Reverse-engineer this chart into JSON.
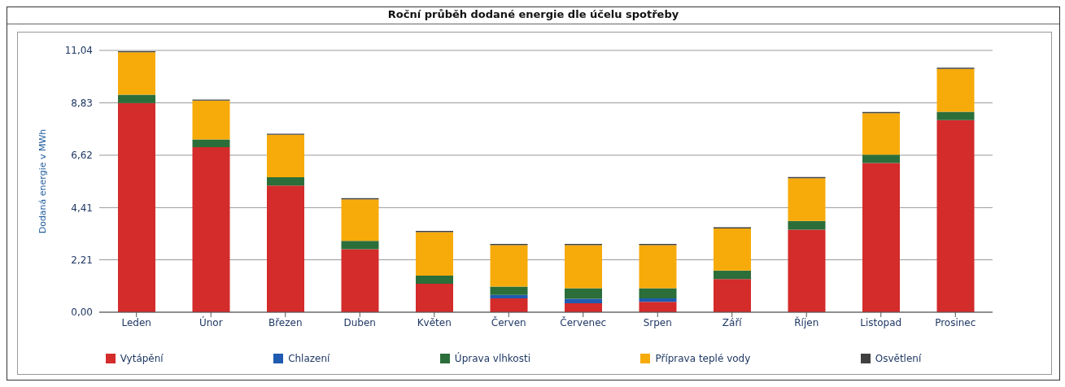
{
  "chart_data": {
    "type": "bar",
    "title": "Roční průběh dodané energie dle účelu spotřeby",
    "ylabel": "Dodaná energie v MWh",
    "stacked": true,
    "grid": "y",
    "legend": "bottom",
    "categories": [
      "Leden",
      "Únor",
      "Březen",
      "Duben",
      "Květen",
      "Červen",
      "Červenec",
      "Srpen",
      "Září",
      "Říjen",
      "Listopad",
      "Prosinec"
    ],
    "ylim": [
      0,
      11.04
    ],
    "yticks": [
      {
        "value": 0,
        "label": "0,00"
      },
      {
        "value": 2.21,
        "label": "2,21"
      },
      {
        "value": 4.41,
        "label": "4,41"
      },
      {
        "value": 6.62,
        "label": "6,62"
      },
      {
        "value": 8.83,
        "label": "8,83"
      },
      {
        "value": 11.04,
        "label": "11,04"
      }
    ],
    "series": [
      {
        "name": "Vytápění",
        "color": "#d42b2b",
        "values": [
          8.82,
          6.96,
          5.34,
          2.66,
          1.2,
          0.58,
          0.38,
          0.44,
          1.4,
          3.48,
          6.29,
          8.1
        ]
      },
      {
        "name": "Chlazení",
        "color": "#1f5bb0",
        "values": [
          0,
          0,
          0,
          0,
          0,
          0.15,
          0.19,
          0.14,
          0,
          0,
          0,
          0
        ]
      },
      {
        "name": "Úprava vlhkosti",
        "color": "#2b6e3a",
        "values": [
          0.35,
          0.33,
          0.35,
          0.35,
          0.34,
          0.35,
          0.44,
          0.43,
          0.36,
          0.37,
          0.35,
          0.35
        ]
      },
      {
        "name": "Příprava teplé vody",
        "color": "#f7ab0a",
        "values": [
          1.79,
          1.63,
          1.79,
          1.75,
          1.84,
          1.75,
          1.82,
          1.82,
          1.77,
          1.8,
          1.75,
          1.81
        ]
      },
      {
        "name": "Osvětlení",
        "color": "#404040",
        "values": [
          0.05,
          0.05,
          0.05,
          0.05,
          0.05,
          0.05,
          0.05,
          0.05,
          0.05,
          0.05,
          0.05,
          0.05
        ]
      }
    ]
  }
}
